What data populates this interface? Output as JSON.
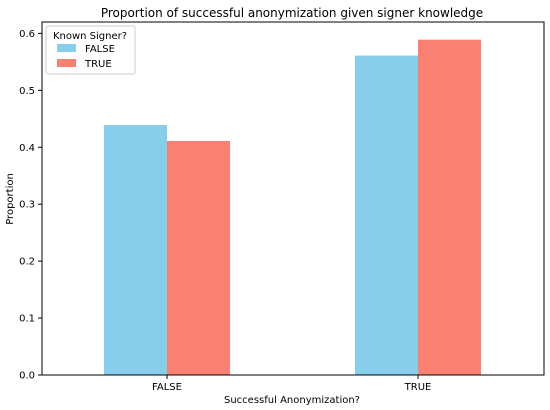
{
  "chart_data": {
    "type": "bar",
    "title": "Proportion of successful anonymization given signer knowledge",
    "xlabel": "Successful Anonymization?",
    "ylabel": "Proportion",
    "categories": [
      "FALSE",
      "TRUE"
    ],
    "series": [
      {
        "name": "FALSE",
        "color": "#87ceeb",
        "values": [
          0.439,
          0.561
        ]
      },
      {
        "name": "TRUE",
        "color": "#fa8072",
        "values": [
          0.411,
          0.589
        ]
      }
    ],
    "ylim": [
      0,
      0.62
    ],
    "yticks": [
      0.0,
      0.1,
      0.2,
      0.3,
      0.4,
      0.5,
      0.6
    ],
    "ytick_labels": [
      "0.0",
      "0.1",
      "0.2",
      "0.3",
      "0.4",
      "0.5",
      "0.6"
    ],
    "legend": {
      "title": "Known Signer?",
      "position": "top-left"
    },
    "grid": false
  }
}
